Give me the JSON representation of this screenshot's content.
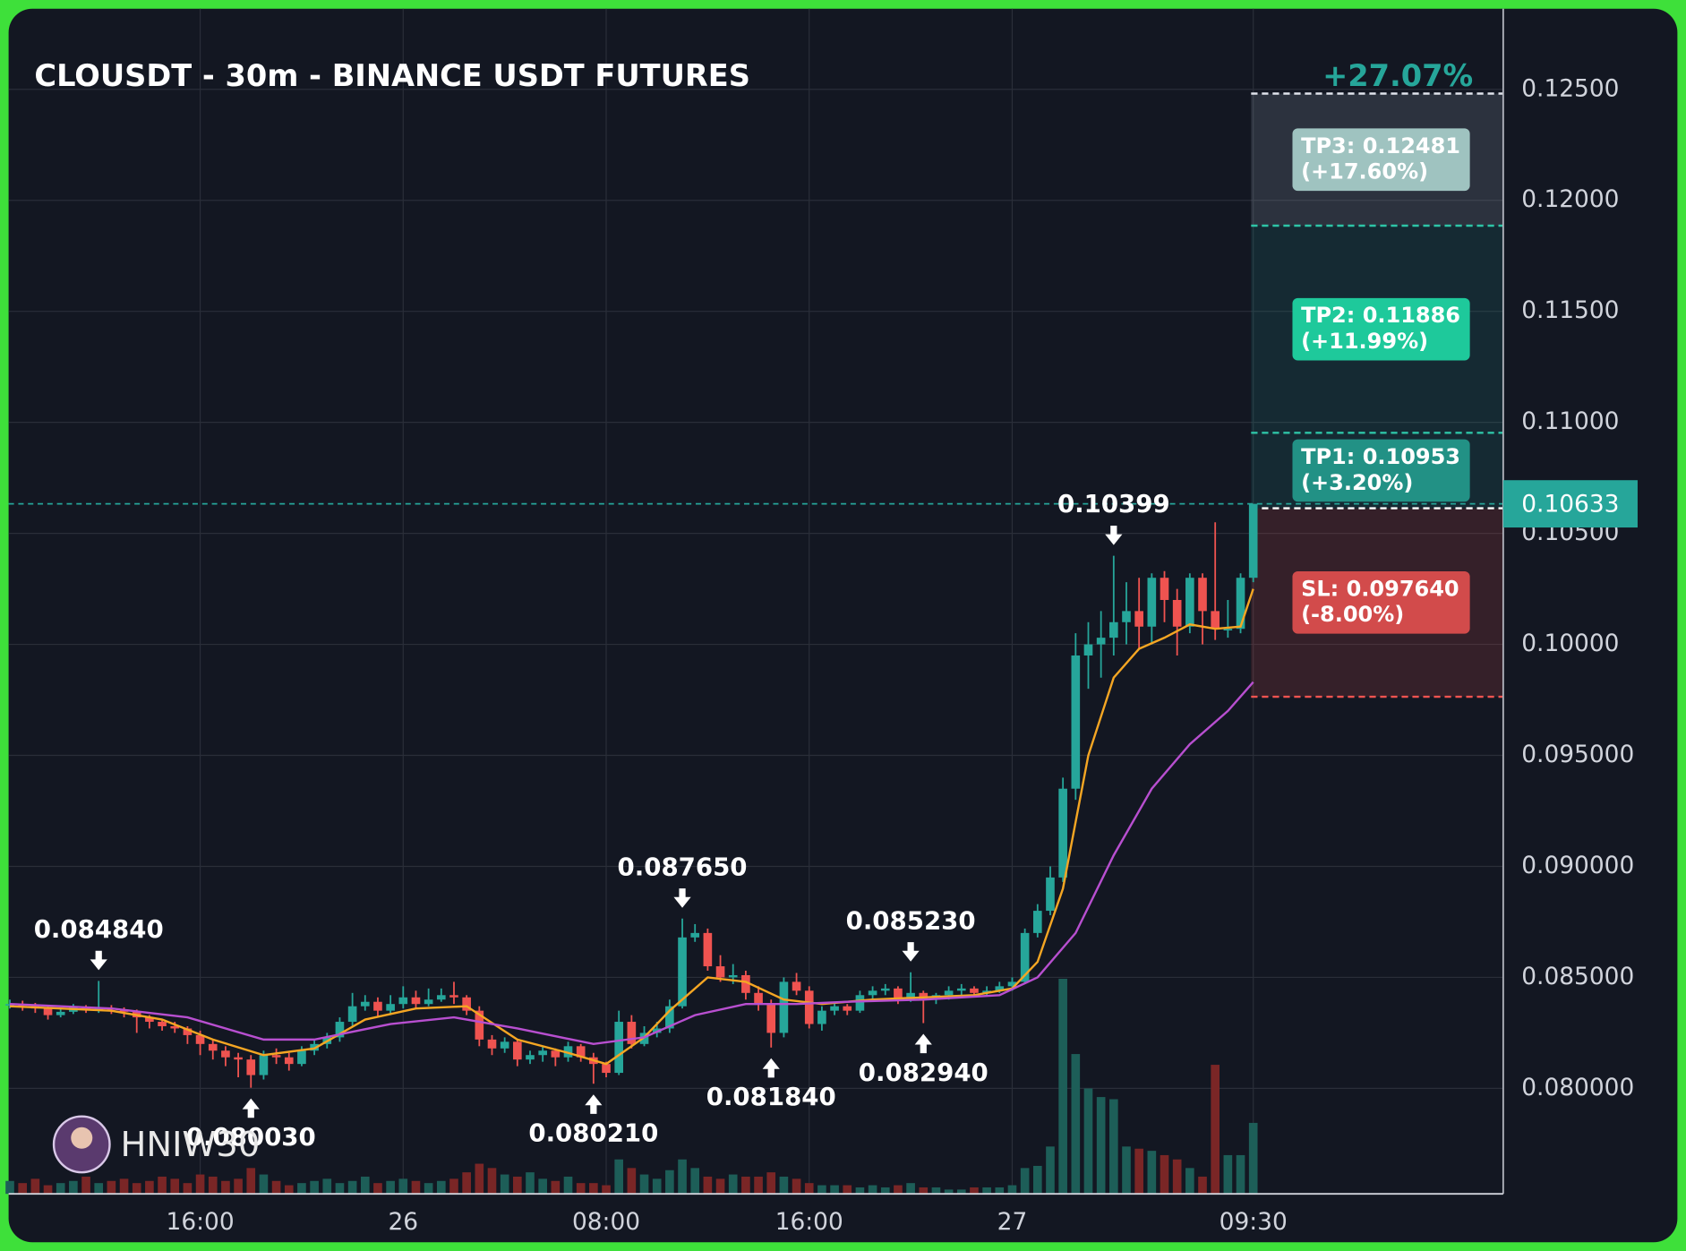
{
  "chart_data": {
    "type": "candlestick",
    "title": "CLOUSDT - 30m - BINANCE USDT FUTURES",
    "up_color": "#26a69a",
    "down_color": "#ef5350",
    "grid": true,
    "xlim": [
      -0.1,
      117.7
    ],
    "xticks": [
      {
        "value": 15,
        "label": "16:00"
      },
      {
        "value": 31,
        "label": "26"
      },
      {
        "value": 47,
        "label": "08:00"
      },
      {
        "value": 63,
        "label": "16:00"
      },
      {
        "value": 79,
        "label": "27"
      },
      {
        "value": 98,
        "label": "09:30"
      }
    ],
    "ylim": [
      0.07525,
      0.12863
    ],
    "yticks": [
      {
        "value": 0.125,
        "label": "0.12500"
      },
      {
        "value": 0.12,
        "label": "0.12000"
      },
      {
        "value": 0.115,
        "label": "0.11500"
      },
      {
        "value": 0.11,
        "label": "0.11000"
      },
      {
        "value": 0.105,
        "label": "0.10500"
      },
      {
        "value": 0.1,
        "label": "0.10000"
      },
      {
        "value": 0.095,
        "label": "0.095000"
      },
      {
        "value": 0.09,
        "label": "0.090000"
      },
      {
        "value": 0.085,
        "label": "0.085000"
      },
      {
        "value": 0.08,
        "label": "0.080000"
      }
    ],
    "candles": [
      [
        0.08375,
        0.084,
        0.0836,
        0.0838
      ],
      [
        0.0838,
        0.08395,
        0.0835,
        0.08372
      ],
      [
        0.08372,
        0.08385,
        0.0834,
        0.0836
      ],
      [
        0.0836,
        0.0837,
        0.0831,
        0.0833
      ],
      [
        0.0833,
        0.0836,
        0.0832,
        0.08345
      ],
      [
        0.08345,
        0.0838,
        0.08335,
        0.08365
      ],
      [
        0.08365,
        0.08375,
        0.0834,
        0.08358
      ],
      [
        0.08358,
        0.08484,
        0.0834,
        0.08362
      ],
      [
        0.08362,
        0.08375,
        0.08335,
        0.08355
      ],
      [
        0.08355,
        0.08365,
        0.0832,
        0.08345
      ],
      [
        0.08345,
        0.08355,
        0.0825,
        0.0832
      ],
      [
        0.0832,
        0.0833,
        0.0827,
        0.083
      ],
      [
        0.083,
        0.0831,
        0.0826,
        0.0828
      ],
      [
        0.0828,
        0.083,
        0.0825,
        0.0827
      ],
      [
        0.0827,
        0.0828,
        0.082,
        0.0824
      ],
      [
        0.0824,
        0.0826,
        0.0815,
        0.082
      ],
      [
        0.082,
        0.0822,
        0.0813,
        0.0817
      ],
      [
        0.0817,
        0.0819,
        0.081,
        0.0814
      ],
      [
        0.0814,
        0.0816,
        0.0805,
        0.0813
      ],
      [
        0.0813,
        0.0815,
        0.08003,
        0.0806
      ],
      [
        0.0806,
        0.0817,
        0.0804,
        0.0815
      ],
      [
        0.0815,
        0.0818,
        0.0811,
        0.0814
      ],
      [
        0.0814,
        0.0816,
        0.0808,
        0.0811
      ],
      [
        0.0811,
        0.0819,
        0.081,
        0.0817
      ],
      [
        0.0817,
        0.0822,
        0.0815,
        0.082
      ],
      [
        0.082,
        0.0825,
        0.0818,
        0.0823
      ],
      [
        0.0823,
        0.0832,
        0.0821,
        0.083
      ],
      [
        0.083,
        0.0843,
        0.0828,
        0.0837
      ],
      [
        0.0837,
        0.0842,
        0.0835,
        0.0839
      ],
      [
        0.0839,
        0.0841,
        0.0832,
        0.0835
      ],
      [
        0.0835,
        0.0842,
        0.0833,
        0.0838
      ],
      [
        0.0838,
        0.0846,
        0.0836,
        0.0841
      ],
      [
        0.0841,
        0.0844,
        0.0836,
        0.0838
      ],
      [
        0.0838,
        0.0845,
        0.0837,
        0.084
      ],
      [
        0.084,
        0.0845,
        0.0839,
        0.0842
      ],
      [
        0.0842,
        0.0848,
        0.0838,
        0.0841
      ],
      [
        0.0841,
        0.0842,
        0.0833,
        0.0835
      ],
      [
        0.0835,
        0.0837,
        0.0819,
        0.0822
      ],
      [
        0.0822,
        0.0824,
        0.0815,
        0.0818
      ],
      [
        0.0818,
        0.0823,
        0.0816,
        0.0821
      ],
      [
        0.0821,
        0.0822,
        0.081,
        0.0813
      ],
      [
        0.0813,
        0.0817,
        0.0811,
        0.0815
      ],
      [
        0.0815,
        0.0819,
        0.0812,
        0.0817
      ],
      [
        0.0817,
        0.0818,
        0.081,
        0.0814
      ],
      [
        0.0814,
        0.0821,
        0.0812,
        0.0819
      ],
      [
        0.0819,
        0.082,
        0.0812,
        0.0814
      ],
      [
        0.0814,
        0.0816,
        0.08021,
        0.0811
      ],
      [
        0.0811,
        0.0812,
        0.0805,
        0.0807
      ],
      [
        0.0807,
        0.0835,
        0.0806,
        0.083
      ],
      [
        0.083,
        0.0833,
        0.0818,
        0.082
      ],
      [
        0.082,
        0.0828,
        0.0819,
        0.0825
      ],
      [
        0.0825,
        0.083,
        0.0823,
        0.0827
      ],
      [
        0.0827,
        0.084,
        0.0825,
        0.0837
      ],
      [
        0.0837,
        0.08765,
        0.0836,
        0.0868
      ],
      [
        0.0868,
        0.0874,
        0.0866,
        0.087
      ],
      [
        0.087,
        0.0872,
        0.0853,
        0.0855
      ],
      [
        0.0855,
        0.086,
        0.0848,
        0.085
      ],
      [
        0.085,
        0.0856,
        0.0847,
        0.0851
      ],
      [
        0.0851,
        0.0853,
        0.084,
        0.0843
      ],
      [
        0.0843,
        0.0846,
        0.0835,
        0.0838
      ],
      [
        0.0838,
        0.084,
        0.08184,
        0.0825
      ],
      [
        0.0825,
        0.085,
        0.0823,
        0.0848
      ],
      [
        0.0848,
        0.0852,
        0.0842,
        0.0844
      ],
      [
        0.0844,
        0.0846,
        0.0827,
        0.0829
      ],
      [
        0.0829,
        0.0837,
        0.0826,
        0.0835
      ],
      [
        0.0835,
        0.0839,
        0.0833,
        0.0837
      ],
      [
        0.0837,
        0.0838,
        0.0833,
        0.0835
      ],
      [
        0.0835,
        0.0844,
        0.0834,
        0.0842
      ],
      [
        0.0842,
        0.0846,
        0.084,
        0.0844
      ],
      [
        0.0844,
        0.0847,
        0.0842,
        0.0845
      ],
      [
        0.0845,
        0.0846,
        0.0838,
        0.084
      ],
      [
        0.084,
        0.08523,
        0.0839,
        0.0843
      ],
      [
        0.0843,
        0.0844,
        0.08294,
        0.084
      ],
      [
        0.084,
        0.0843,
        0.0838,
        0.0842
      ],
      [
        0.0842,
        0.0846,
        0.084,
        0.0844
      ],
      [
        0.0844,
        0.0847,
        0.0842,
        0.0845
      ],
      [
        0.0845,
        0.0846,
        0.0841,
        0.0843
      ],
      [
        0.0843,
        0.0846,
        0.0842,
        0.0844
      ],
      [
        0.0844,
        0.0848,
        0.0843,
        0.0846
      ],
      [
        0.0846,
        0.085,
        0.0844,
        0.0848
      ],
      [
        0.0848,
        0.0872,
        0.0847,
        0.087
      ],
      [
        0.087,
        0.0883,
        0.0868,
        0.088
      ],
      [
        0.088,
        0.09,
        0.0878,
        0.0895
      ],
      [
        0.0895,
        0.094,
        0.0893,
        0.0935
      ],
      [
        0.0935,
        0.1005,
        0.093,
        0.0995
      ],
      [
        0.0995,
        0.101,
        0.098,
        0.1
      ],
      [
        0.1,
        0.1015,
        0.0985,
        0.1003
      ],
      [
        0.1003,
        0.10399,
        0.0995,
        0.101
      ],
      [
        0.101,
        0.1028,
        0.1,
        0.1015
      ],
      [
        0.1015,
        0.103,
        0.0998,
        0.1008
      ],
      [
        0.1008,
        0.1032,
        0.1,
        0.103
      ],
      [
        0.103,
        0.1033,
        0.101,
        0.102
      ],
      [
        0.102,
        0.1025,
        0.0995,
        0.1008
      ],
      [
        0.1008,
        0.1032,
        0.1005,
        0.103
      ],
      [
        0.103,
        0.1032,
        0.1,
        0.1015
      ],
      [
        0.1015,
        0.1055,
        0.1002,
        0.1007
      ],
      [
        0.1007,
        0.102,
        0.1003,
        0.1007
      ],
      [
        0.1007,
        0.1032,
        0.1005,
        0.103
      ],
      [
        0.103,
        0.10633,
        0.1028,
        0.10633
      ]
    ],
    "volume": [
      6,
      5,
      7,
      4,
      5,
      6,
      8,
      5,
      6,
      7,
      5,
      6,
      8,
      7,
      5,
      9,
      8,
      6,
      7,
      12,
      9,
      6,
      4,
      5,
      6,
      7,
      5,
      6,
      8,
      5,
      6,
      7,
      6,
      5,
      6,
      7,
      10,
      14,
      12,
      9,
      8,
      10,
      7,
      6,
      8,
      5,
      5,
      4,
      16,
      12,
      9,
      7,
      11,
      16,
      12,
      8,
      7,
      9,
      8,
      8,
      10,
      8,
      7,
      5,
      4,
      4,
      4,
      3,
      4,
      3,
      4,
      5,
      3,
      3,
      2,
      2,
      3,
      3,
      3,
      4,
      12,
      13,
      22,
      100,
      65,
      49,
      45,
      44,
      22,
      21,
      20,
      18,
      16,
      12,
      8,
      60,
      18,
      18,
      33
    ],
    "volume_up_color": "#1d5e58",
    "volume_down_color": "#7a2626",
    "series": [
      {
        "color": "#f5a623",
        "x": [
          0,
          4,
          8,
          12,
          16,
          20,
          24,
          28,
          32,
          36,
          40,
          44,
          47,
          50,
          52,
          55,
          58,
          61,
          64,
          68,
          72,
          76,
          79,
          81,
          83,
          85,
          87,
          89,
          91,
          93,
          95,
          97,
          98
        ],
        "values": [
          0.0837,
          0.0836,
          0.0835,
          0.0831,
          0.0822,
          0.0815,
          0.0818,
          0.0831,
          0.0836,
          0.0837,
          0.0822,
          0.0816,
          0.0811,
          0.0823,
          0.0835,
          0.085,
          0.0848,
          0.084,
          0.0838,
          0.084,
          0.0841,
          0.0842,
          0.0845,
          0.0857,
          0.089,
          0.095,
          0.0985,
          0.0998,
          0.1003,
          0.1009,
          0.1007,
          0.1008,
          0.1025
        ]
      },
      {
        "color": "#b84fd0",
        "x": [
          0,
          8,
          14,
          20,
          24,
          30,
          35,
          40,
          46,
          50,
          54,
          58,
          62,
          66,
          72,
          78,
          81,
          84,
          87,
          90,
          93,
          96,
          98
        ],
        "values": [
          0.0838,
          0.0836,
          0.0832,
          0.0822,
          0.0822,
          0.0829,
          0.0832,
          0.0827,
          0.082,
          0.0823,
          0.0833,
          0.0838,
          0.0838,
          0.0839,
          0.084,
          0.0842,
          0.085,
          0.087,
          0.0905,
          0.0935,
          0.0955,
          0.097,
          0.0983
        ]
      }
    ],
    "annotations": [
      {
        "x": 7,
        "value": 0.08484,
        "label": "0.084840",
        "direction": "down"
      },
      {
        "x": 19,
        "value": 0.08003,
        "label": "0.080030",
        "direction": "up"
      },
      {
        "x": 46,
        "value": 0.08021,
        "label": "0.080210",
        "direction": "up"
      },
      {
        "x": 53,
        "value": 0.08765,
        "label": "0.087650",
        "direction": "down"
      },
      {
        "x": 60,
        "value": 0.08184,
        "label": "0.081840",
        "direction": "up"
      },
      {
        "x": 71,
        "value": 0.08523,
        "label": "0.085230",
        "direction": "down"
      },
      {
        "x": 72,
        "value": 0.08294,
        "label": "0.082940",
        "direction": "up"
      },
      {
        "x": 87,
        "value": 0.10399,
        "label": "0.10399",
        "direction": "down"
      }
    ],
    "last_price": {
      "value": 0.10633,
      "label": "0.10633",
      "color": "#26a69a"
    },
    "gain": "+27.07%",
    "targets": [
      {
        "value": 0.12481,
        "label": "TP3: 0.12481",
        "change": "(+17.60%)",
        "color": "#9fc3c0"
      },
      {
        "value": 0.11886,
        "label": "TP2: 0.11886",
        "change": "(+11.99%)",
        "color": "#1ec99b"
      },
      {
        "value": 0.10953,
        "label": "TP1: 0.10953",
        "change": "(+3.20%)",
        "color": "#229185"
      }
    ],
    "entry": 0.10613,
    "stop": {
      "value": 0.09764,
      "label": "SL: 0.097640",
      "change": "(-8.00%)",
      "color": "#d24b4b"
    },
    "watermark": "HNIW30"
  }
}
